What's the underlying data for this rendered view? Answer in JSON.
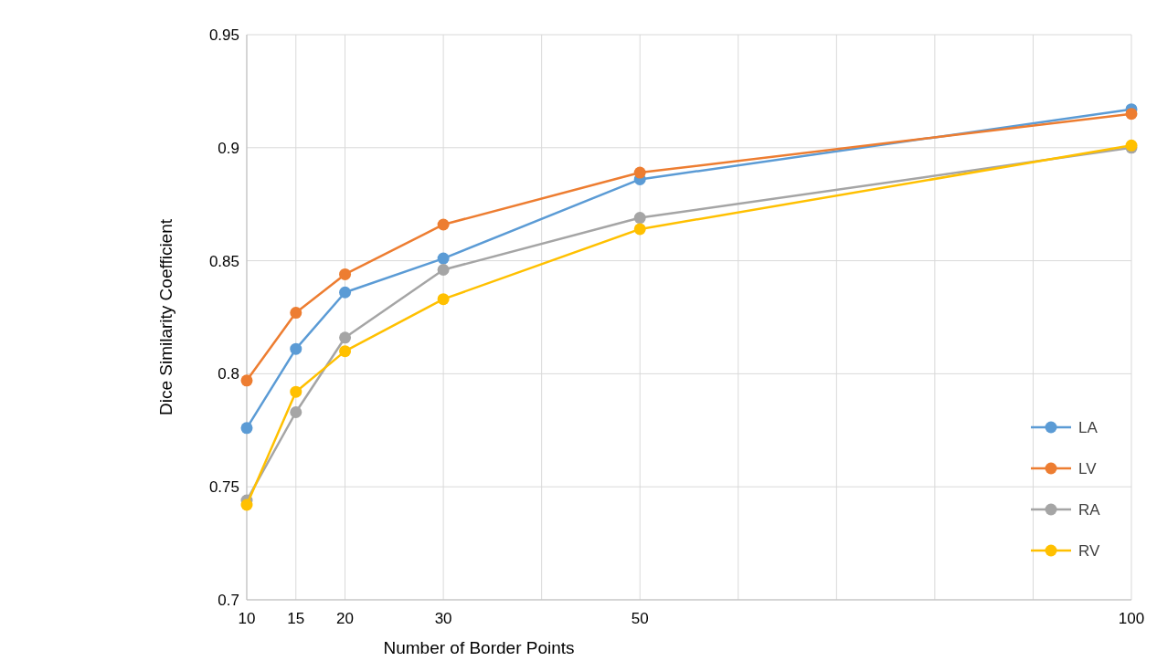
{
  "chart_data": {
    "type": "line",
    "xlabel": "Number of Border Points",
    "ylabel": "Dice Similarity Coefficient",
    "xlim": [
      10,
      100
    ],
    "xticks": [
      10,
      15,
      20,
      30,
      {
        "value": 40,
        "label": null
      },
      50,
      {
        "value": 60,
        "label": null
      },
      {
        "value": 70,
        "label": null
      },
      {
        "value": 80,
        "label": null
      },
      {
        "value": 90,
        "label": null
      },
      100
    ],
    "ylim": [
      0.7,
      0.95
    ],
    "yticks": [
      0.7,
      0.75,
      0.8,
      0.85,
      0.9,
      0.95
    ],
    "x": [
      10,
      15,
      20,
      30,
      50,
      100
    ],
    "series": [
      {
        "name": "LA",
        "color": "#5b9bd5",
        "values": [
          0.776,
          0.811,
          0.836,
          0.851,
          0.886,
          0.917
        ]
      },
      {
        "name": "LV",
        "color": "#ed7d31",
        "values": [
          0.797,
          0.827,
          0.844,
          0.866,
          0.889,
          0.915
        ]
      },
      {
        "name": "RA",
        "color": "#a5a5a5",
        "values": [
          0.744,
          0.783,
          0.816,
          0.846,
          0.869,
          0.9
        ]
      },
      {
        "name": "RV",
        "color": "#ffc000",
        "values": [
          0.742,
          0.792,
          0.81,
          0.833,
          0.864,
          0.901
        ]
      }
    ],
    "grid": true,
    "legend": "bottom right",
    "marker": "circle",
    "line_style": "solid"
  }
}
